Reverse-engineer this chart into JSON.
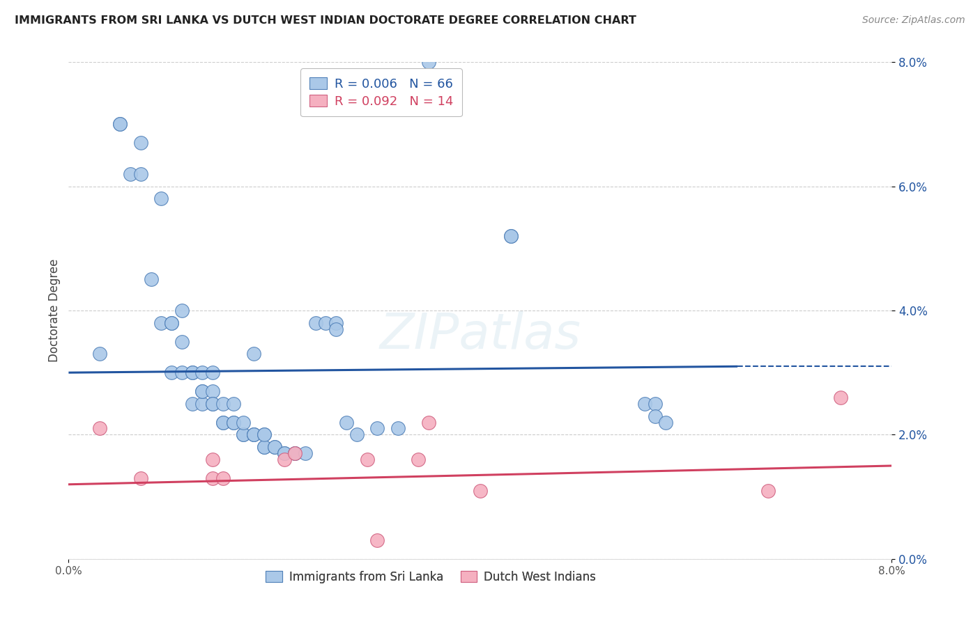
{
  "title": "IMMIGRANTS FROM SRI LANKA VS DUTCH WEST INDIAN DOCTORATE DEGREE CORRELATION CHART",
  "source": "Source: ZipAtlas.com",
  "ylabel": "Doctorate Degree",
  "xlim": [
    0.0,
    0.08
  ],
  "ylim": [
    0.0,
    0.08
  ],
  "legend_r1_label": "R = 0.006   N = 66",
  "legend_r2_label": "R = 0.092   N = 14",
  "legend_label1": "Immigrants from Sri Lanka",
  "legend_label2": "Dutch West Indians",
  "color_blue_fill": "#aac8e8",
  "color_blue_edge": "#5080b8",
  "color_pink_fill": "#f5b0c0",
  "color_pink_edge": "#d06080",
  "color_blue_line": "#2255a0",
  "color_pink_line": "#d04060",
  "color_blue_text": "#2255a0",
  "color_pink_text": "#d04060",
  "watermark_text": "ZIPatlas",
  "sri_lanka_x": [
    0.003,
    0.005,
    0.005,
    0.006,
    0.007,
    0.007,
    0.008,
    0.009,
    0.009,
    0.01,
    0.01,
    0.01,
    0.011,
    0.011,
    0.011,
    0.012,
    0.012,
    0.012,
    0.013,
    0.013,
    0.013,
    0.013,
    0.014,
    0.014,
    0.014,
    0.014,
    0.015,
    0.015,
    0.015,
    0.016,
    0.016,
    0.016,
    0.017,
    0.017,
    0.017,
    0.018,
    0.018,
    0.018,
    0.018,
    0.019,
    0.019,
    0.019,
    0.019,
    0.02,
    0.02,
    0.021,
    0.021,
    0.022,
    0.022,
    0.023,
    0.024,
    0.025,
    0.026,
    0.026,
    0.027,
    0.028,
    0.03,
    0.032,
    0.035,
    0.035,
    0.043,
    0.043,
    0.056,
    0.057,
    0.057,
    0.058
  ],
  "sri_lanka_y": [
    0.033,
    0.07,
    0.07,
    0.062,
    0.062,
    0.067,
    0.045,
    0.038,
    0.058,
    0.038,
    0.038,
    0.03,
    0.03,
    0.035,
    0.04,
    0.03,
    0.03,
    0.025,
    0.025,
    0.027,
    0.027,
    0.03,
    0.03,
    0.027,
    0.025,
    0.025,
    0.025,
    0.022,
    0.022,
    0.022,
    0.022,
    0.025,
    0.02,
    0.02,
    0.022,
    0.02,
    0.02,
    0.02,
    0.033,
    0.02,
    0.018,
    0.018,
    0.02,
    0.018,
    0.018,
    0.017,
    0.017,
    0.017,
    0.017,
    0.017,
    0.038,
    0.038,
    0.038,
    0.037,
    0.022,
    0.02,
    0.021,
    0.021,
    0.077,
    0.08,
    0.052,
    0.052,
    0.025,
    0.025,
    0.023,
    0.022
  ],
  "dutch_wi_x": [
    0.003,
    0.007,
    0.014,
    0.014,
    0.015,
    0.021,
    0.022,
    0.029,
    0.03,
    0.034,
    0.035,
    0.04,
    0.068,
    0.075
  ],
  "dutch_wi_y": [
    0.021,
    0.013,
    0.013,
    0.016,
    0.013,
    0.016,
    0.017,
    0.016,
    0.003,
    0.016,
    0.022,
    0.011,
    0.011,
    0.026
  ],
  "blue_line_x0": 0.0,
  "blue_line_x1": 0.065,
  "blue_line_y0": 0.03,
  "blue_line_y1": 0.031,
  "blue_line_dash_x0": 0.065,
  "blue_line_dash_x1": 0.08,
  "blue_line_dash_y0": 0.031,
  "blue_line_dash_y1": 0.031,
  "pink_line_x0": 0.0,
  "pink_line_x1": 0.08,
  "pink_line_y0": 0.012,
  "pink_line_y1": 0.015
}
